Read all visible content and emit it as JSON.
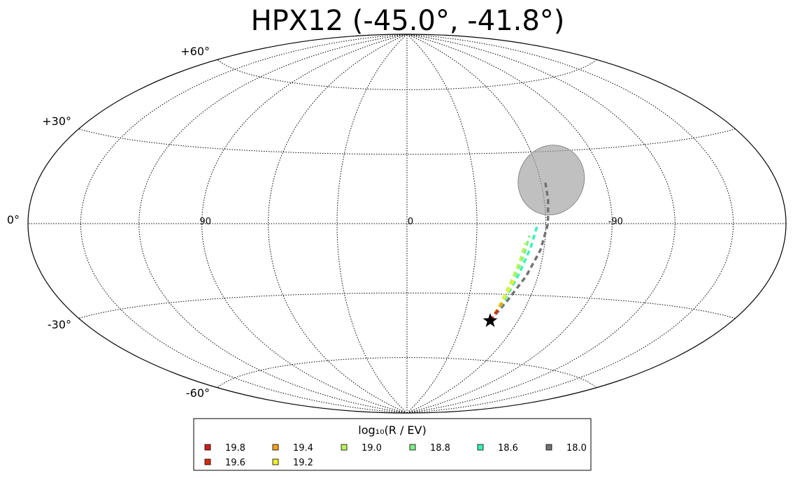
{
  "chart_data": {
    "type": "scatter",
    "projection": "hammer-aitoff",
    "title": "HPX12 (-45.0°, -41.8°)",
    "grid": true,
    "lat_ticks": [
      {
        "value": 60,
        "label": "+60°"
      },
      {
        "value": 30,
        "label": "+30°"
      },
      {
        "value": 0,
        "label": "0°"
      },
      {
        "value": -30,
        "label": "-30°"
      },
      {
        "value": -60,
        "label": "-60°"
      }
    ],
    "lon_ticks": [
      {
        "value": 90,
        "label": "90"
      },
      {
        "value": 0,
        "label": "0"
      },
      {
        "value": -90,
        "label": "-90"
      }
    ],
    "target": {
      "lon": -45.0,
      "lat": -41.8,
      "marker": "star"
    },
    "region": {
      "lon": -65,
      "lat": 18,
      "width_deg": 30,
      "height_deg": 30,
      "color": "#9e9e9e"
    },
    "legend": {
      "title": "log₁₀(R / EV)",
      "placement": "bottom",
      "entries": [
        {
          "label": "19.8",
          "color": "#cc1f1a"
        },
        {
          "label": "19.6",
          "color": "#d62b12"
        },
        {
          "label": "19.4",
          "color": "#f5a31a"
        },
        {
          "label": "19.2",
          "color": "#f0f02c"
        },
        {
          "label": "19.0",
          "color": "#b9f559"
        },
        {
          "label": "18.8",
          "color": "#7ff086"
        },
        {
          "label": "18.6",
          "color": "#3cf0b4"
        },
        {
          "label": "18.0",
          "color": "#737373"
        }
      ]
    },
    "series": [
      {
        "name": "19.8",
        "color": "#cc1f1a",
        "points": [
          [
            -45.0,
            -41.8
          ],
          [
            -46.0,
            -38.5
          ]
        ]
      },
      {
        "name": "19.6",
        "color": "#d62b12",
        "points": [
          [
            -45.0,
            -41.8
          ],
          [
            -45.8,
            -38.8
          ],
          [
            -46.6,
            -36.5
          ]
        ]
      },
      {
        "name": "19.4",
        "color": "#f5a31a",
        "points": [
          [
            -45.0,
            -41.8
          ],
          [
            -46.2,
            -37.5
          ],
          [
            -47.5,
            -33.0
          ]
        ]
      },
      {
        "name": "19.2",
        "color": "#f0f02c",
        "points": [
          [
            -45.0,
            -41.8
          ],
          [
            -46.5,
            -36.0
          ],
          [
            -48.0,
            -29.0
          ],
          [
            -49.5,
            -23.0
          ]
        ]
      },
      {
        "name": "19.0",
        "color": "#b9f559",
        "points": [
          [
            -45.0,
            -41.8
          ],
          [
            -46.3,
            -35.5
          ],
          [
            -48.0,
            -26.0
          ],
          [
            -50.0,
            -16.0
          ],
          [
            -51.5,
            -8.0
          ]
        ]
      },
      {
        "name": "18.8",
        "color": "#7ff086",
        "points": [
          [
            -45.0,
            -41.8
          ],
          [
            -46.8,
            -34.0
          ],
          [
            -49.2,
            -23.0
          ],
          [
            -51.5,
            -13.0
          ],
          [
            -53.0,
            -5.0
          ]
        ]
      },
      {
        "name": "18.6",
        "color": "#3cf0b4",
        "points": [
          [
            -45.0,
            -41.8
          ],
          [
            -47.8,
            -33.0
          ],
          [
            -51.0,
            -21.0
          ],
          [
            -54.0,
            -10.0
          ],
          [
            -56.5,
            0.0
          ]
        ]
      },
      {
        "name": "18.0",
        "color": "#737373",
        "points": [
          [
            -45.0,
            -41.8
          ],
          [
            -49.5,
            -32.5
          ],
          [
            -54.5,
            -22.0
          ],
          [
            -58.5,
            -11.0
          ],
          [
            -61.0,
            0.0
          ],
          [
            -61.8,
            10.0
          ],
          [
            -62.0,
            17.0
          ]
        ]
      }
    ]
  }
}
